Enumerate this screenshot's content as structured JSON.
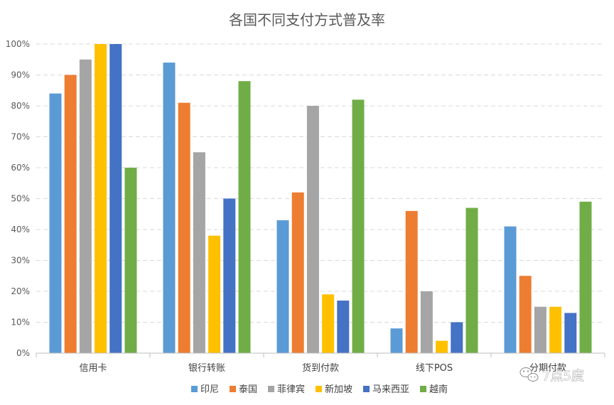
{
  "chart_data": {
    "type": "bar",
    "title": "各国不同支付方式普及率",
    "categories": [
      "信用卡",
      "银行转账",
      "货到付款",
      "线下POS",
      "分期付款"
    ],
    "series": [
      {
        "name": "印尼",
        "color": "#5B9BD5",
        "values": [
          84,
          94,
          43,
          8,
          41
        ]
      },
      {
        "name": "泰国",
        "color": "#ED7D31",
        "values": [
          90,
          81,
          52,
          46,
          25
        ]
      },
      {
        "name": "菲律宾",
        "color": "#A5A5A5",
        "values": [
          95,
          65,
          80,
          20,
          15
        ]
      },
      {
        "name": "新加坡",
        "color": "#FFC000",
        "values": [
          100,
          38,
          19,
          4,
          15
        ]
      },
      {
        "name": "马来西亚",
        "color": "#4472C4",
        "values": [
          100,
          50,
          17,
          10,
          13
        ]
      },
      {
        "name": "越南",
        "color": "#70AD47",
        "values": [
          60,
          88,
          82,
          47,
          49
        ]
      }
    ],
    "ylim": [
      0,
      100
    ],
    "yticks": [
      "0%",
      "10%",
      "20%",
      "30%",
      "40%",
      "50%",
      "60%",
      "70%",
      "80%",
      "90%",
      "100%"
    ],
    "xlabel": "",
    "ylabel": "",
    "grid": true,
    "grid_style": "dashed",
    "legend_position": "bottom"
  },
  "watermark": {
    "text": "7点5度",
    "icon": "wechat-icon"
  }
}
